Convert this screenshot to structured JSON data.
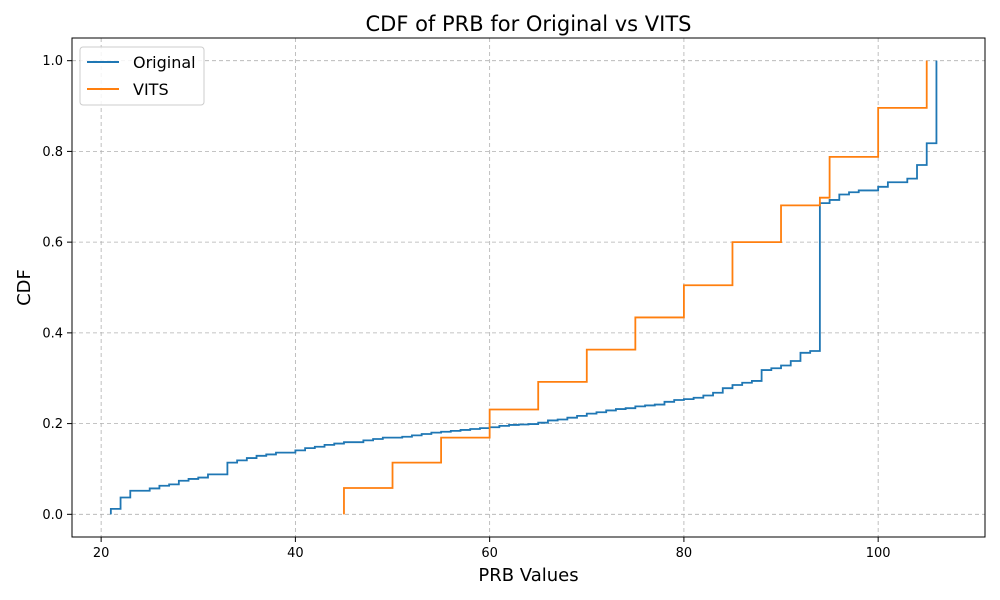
{
  "chart_data": {
    "type": "line",
    "title": "CDF of PRB for Original vs VITS",
    "xlabel": "PRB Values",
    "ylabel": "CDF",
    "xlim": [
      17,
      111
    ],
    "ylim": [
      -0.05,
      1.05
    ],
    "xticks": [
      20,
      40,
      60,
      80,
      100
    ],
    "yticks": [
      0.0,
      0.2,
      0.4,
      0.6,
      0.8,
      1.0
    ],
    "xtick_labels": [
      "20",
      "40",
      "60",
      "80",
      "100"
    ],
    "ytick_labels": [
      "0.0",
      "0.2",
      "0.4",
      "0.6",
      "0.8",
      "1.0"
    ],
    "grid": true,
    "legend_position": "top-left",
    "series": [
      {
        "name": "Original",
        "color": "#1f77b4",
        "x": [
          21,
          22,
          23,
          25,
          26,
          27,
          28,
          29,
          30,
          31,
          33,
          34,
          35,
          36,
          37,
          38,
          40,
          41,
          42,
          43,
          44,
          45,
          47,
          48,
          49,
          51,
          52,
          53,
          54,
          55,
          56,
          57,
          58,
          59,
          60,
          61,
          62,
          63,
          64,
          65,
          66,
          67,
          68,
          69,
          70,
          71,
          72,
          73,
          74,
          75,
          76,
          77,
          78,
          79,
          80,
          81,
          82,
          83,
          84,
          85,
          86,
          87,
          88,
          89,
          90,
          91,
          92,
          93,
          94,
          95,
          96,
          97,
          98,
          100,
          101,
          103,
          104,
          105,
          106
        ],
        "y": [
          0.012,
          0.037,
          0.052,
          0.057,
          0.063,
          0.066,
          0.074,
          0.078,
          0.081,
          0.088,
          0.114,
          0.119,
          0.124,
          0.129,
          0.132,
          0.136,
          0.141,
          0.146,
          0.149,
          0.153,
          0.156,
          0.159,
          0.163,
          0.166,
          0.169,
          0.171,
          0.174,
          0.177,
          0.18,
          0.182,
          0.184,
          0.186,
          0.188,
          0.19,
          0.192,
          0.195,
          0.197,
          0.198,
          0.199,
          0.202,
          0.207,
          0.209,
          0.213,
          0.217,
          0.222,
          0.225,
          0.229,
          0.232,
          0.234,
          0.238,
          0.24,
          0.242,
          0.248,
          0.252,
          0.254,
          0.257,
          0.262,
          0.268,
          0.278,
          0.285,
          0.29,
          0.294,
          0.318,
          0.322,
          0.328,
          0.338,
          0.356,
          0.36,
          0.686,
          0.693,
          0.705,
          0.71,
          0.714,
          0.722,
          0.732,
          0.74,
          0.77,
          0.818,
          1.0
        ]
      },
      {
        "name": "VITS",
        "color": "#ff7f0e",
        "x": [
          45,
          50,
          55,
          60,
          65,
          70,
          75,
          80,
          85,
          90,
          94,
          95,
          100,
          105
        ],
        "y": [
          0.058,
          0.114,
          0.169,
          0.231,
          0.292,
          0.363,
          0.434,
          0.505,
          0.6,
          0.681,
          0.698,
          0.788,
          0.896,
          1.0
        ]
      }
    ]
  }
}
